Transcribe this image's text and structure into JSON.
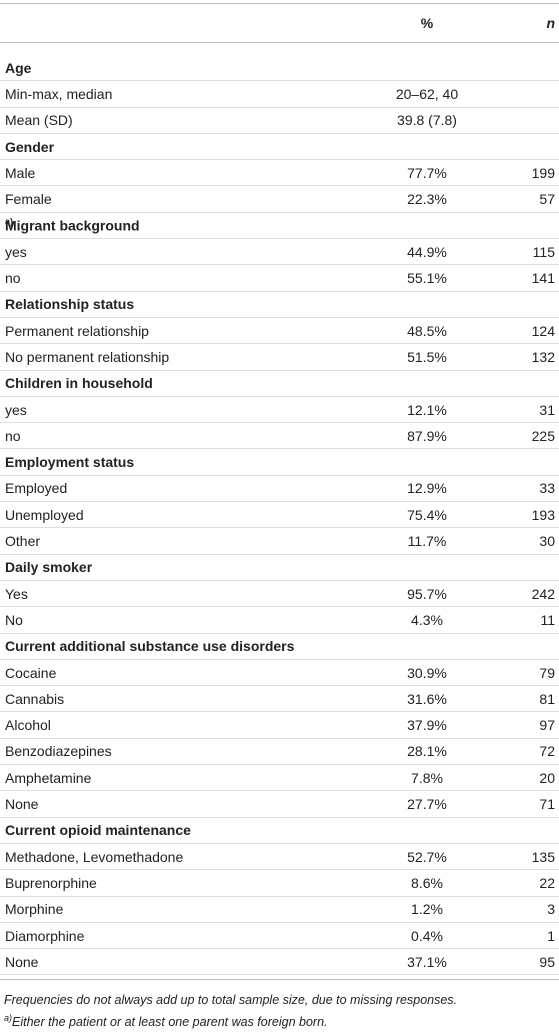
{
  "table": {
    "header": {
      "percent": "%",
      "n": "n"
    },
    "sections": [
      {
        "title": "Age",
        "rows": [
          [
            "Min-max, median",
            "20–62, 40"
          ],
          [
            "Mean (SD)",
            "39.8 (7.8)"
          ]
        ]
      },
      {
        "title": "Gender",
        "rows": [
          [
            "Male",
            "77.7%",
            "199"
          ],
          [
            "Female",
            "22.3%",
            "57"
          ]
        ]
      },
      {
        "title": "Migrant background",
        "marker": "a)",
        "rows": [
          [
            "yes",
            "44.9%",
            "115"
          ],
          [
            "no",
            "55.1%",
            "141"
          ]
        ]
      },
      {
        "title": "Relationship status",
        "rows": [
          [
            "Permanent relationship",
            "48.5%",
            "124"
          ],
          [
            "No permanent relationship",
            "51.5%",
            "132"
          ]
        ]
      },
      {
        "title": "Children in household",
        "rows": [
          [
            "yes",
            "12.1%",
            "31"
          ],
          [
            "no",
            "87.9%",
            "225"
          ]
        ]
      },
      {
        "title": "Employment status",
        "rows": [
          [
            "Employed",
            "12.9%",
            "33"
          ],
          [
            "Unemployed",
            "75.4%",
            "193"
          ],
          [
            "Other",
            "11.7%",
            "30"
          ]
        ]
      },
      {
        "title": "Daily smoker",
        "rows": [
          [
            "Yes",
            "95.7%",
            "242"
          ],
          [
            "No",
            "4.3%",
            "11"
          ]
        ]
      },
      {
        "title": "Current additional substance use disorders",
        "rows": [
          [
            "Cocaine",
            "30.9%",
            "79"
          ],
          [
            "Cannabis",
            "31.6%",
            "81"
          ],
          [
            "Alcohol",
            "37.9%",
            "97"
          ],
          [
            "Benzodiazepines",
            "28.1%",
            "72"
          ],
          [
            "Amphetamine",
            "7.8%",
            "20"
          ],
          [
            "None",
            "27.7%",
            "71"
          ]
        ]
      },
      {
        "title": "Current opioid maintenance",
        "rows": [
          [
            "Methadone, Levomethadone",
            "52.7%",
            "135"
          ],
          [
            "Buprenorphine",
            "8.6%",
            "22"
          ],
          [
            "Morphine",
            "1.2%",
            "3"
          ],
          [
            "Diamorphine",
            "0.4%",
            "1"
          ],
          [
            "None",
            "37.1%",
            "95"
          ]
        ]
      }
    ],
    "notes": [
      {
        "text": "Frequencies do not always add up to total sample size, due to missing responses."
      },
      {
        "marker": "a)",
        "text": "Either the patient or at least one parent was foreign born."
      }
    ]
  }
}
